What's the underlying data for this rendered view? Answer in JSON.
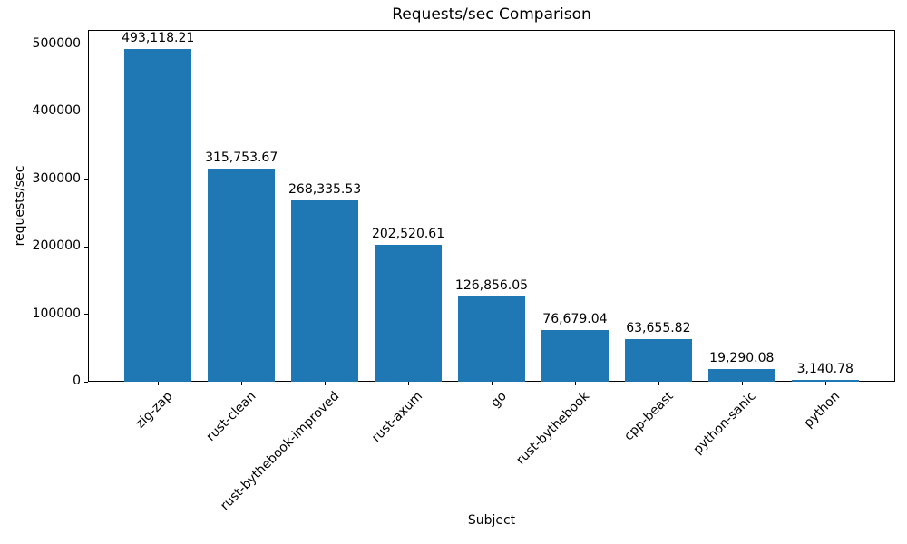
{
  "chart_data": {
    "type": "bar",
    "title": "Requests/sec Comparison",
    "xlabel": "Subject",
    "ylabel": "requests/sec",
    "categories": [
      "zig-zap",
      "rust-clean",
      "rust-bythebook-improved",
      "rust-axum",
      "go",
      "rust-bythebook",
      "cpp-beast",
      "python-sanic",
      "python"
    ],
    "values": [
      493118.21,
      315753.67,
      268335.53,
      202520.61,
      126856.05,
      76679.04,
      63655.82,
      19290.08,
      3140.78
    ],
    "value_labels": [
      "493,118.21",
      "315,753.67",
      "268,335.53",
      "202,520.61",
      "126,856.05",
      "76,679.04",
      "63,655.82",
      "19,290.08",
      "3,140.78"
    ],
    "y_ticks": [
      0,
      100000,
      200000,
      300000,
      400000,
      500000
    ],
    "y_tick_labels": [
      "0",
      "100000",
      "200000",
      "300000",
      "400000",
      "500000"
    ],
    "ylim": [
      0,
      521500
    ],
    "bar_color": "#1f77b4",
    "grid": false,
    "legend_position": "none",
    "x_tick_rotation_deg": 45
  }
}
